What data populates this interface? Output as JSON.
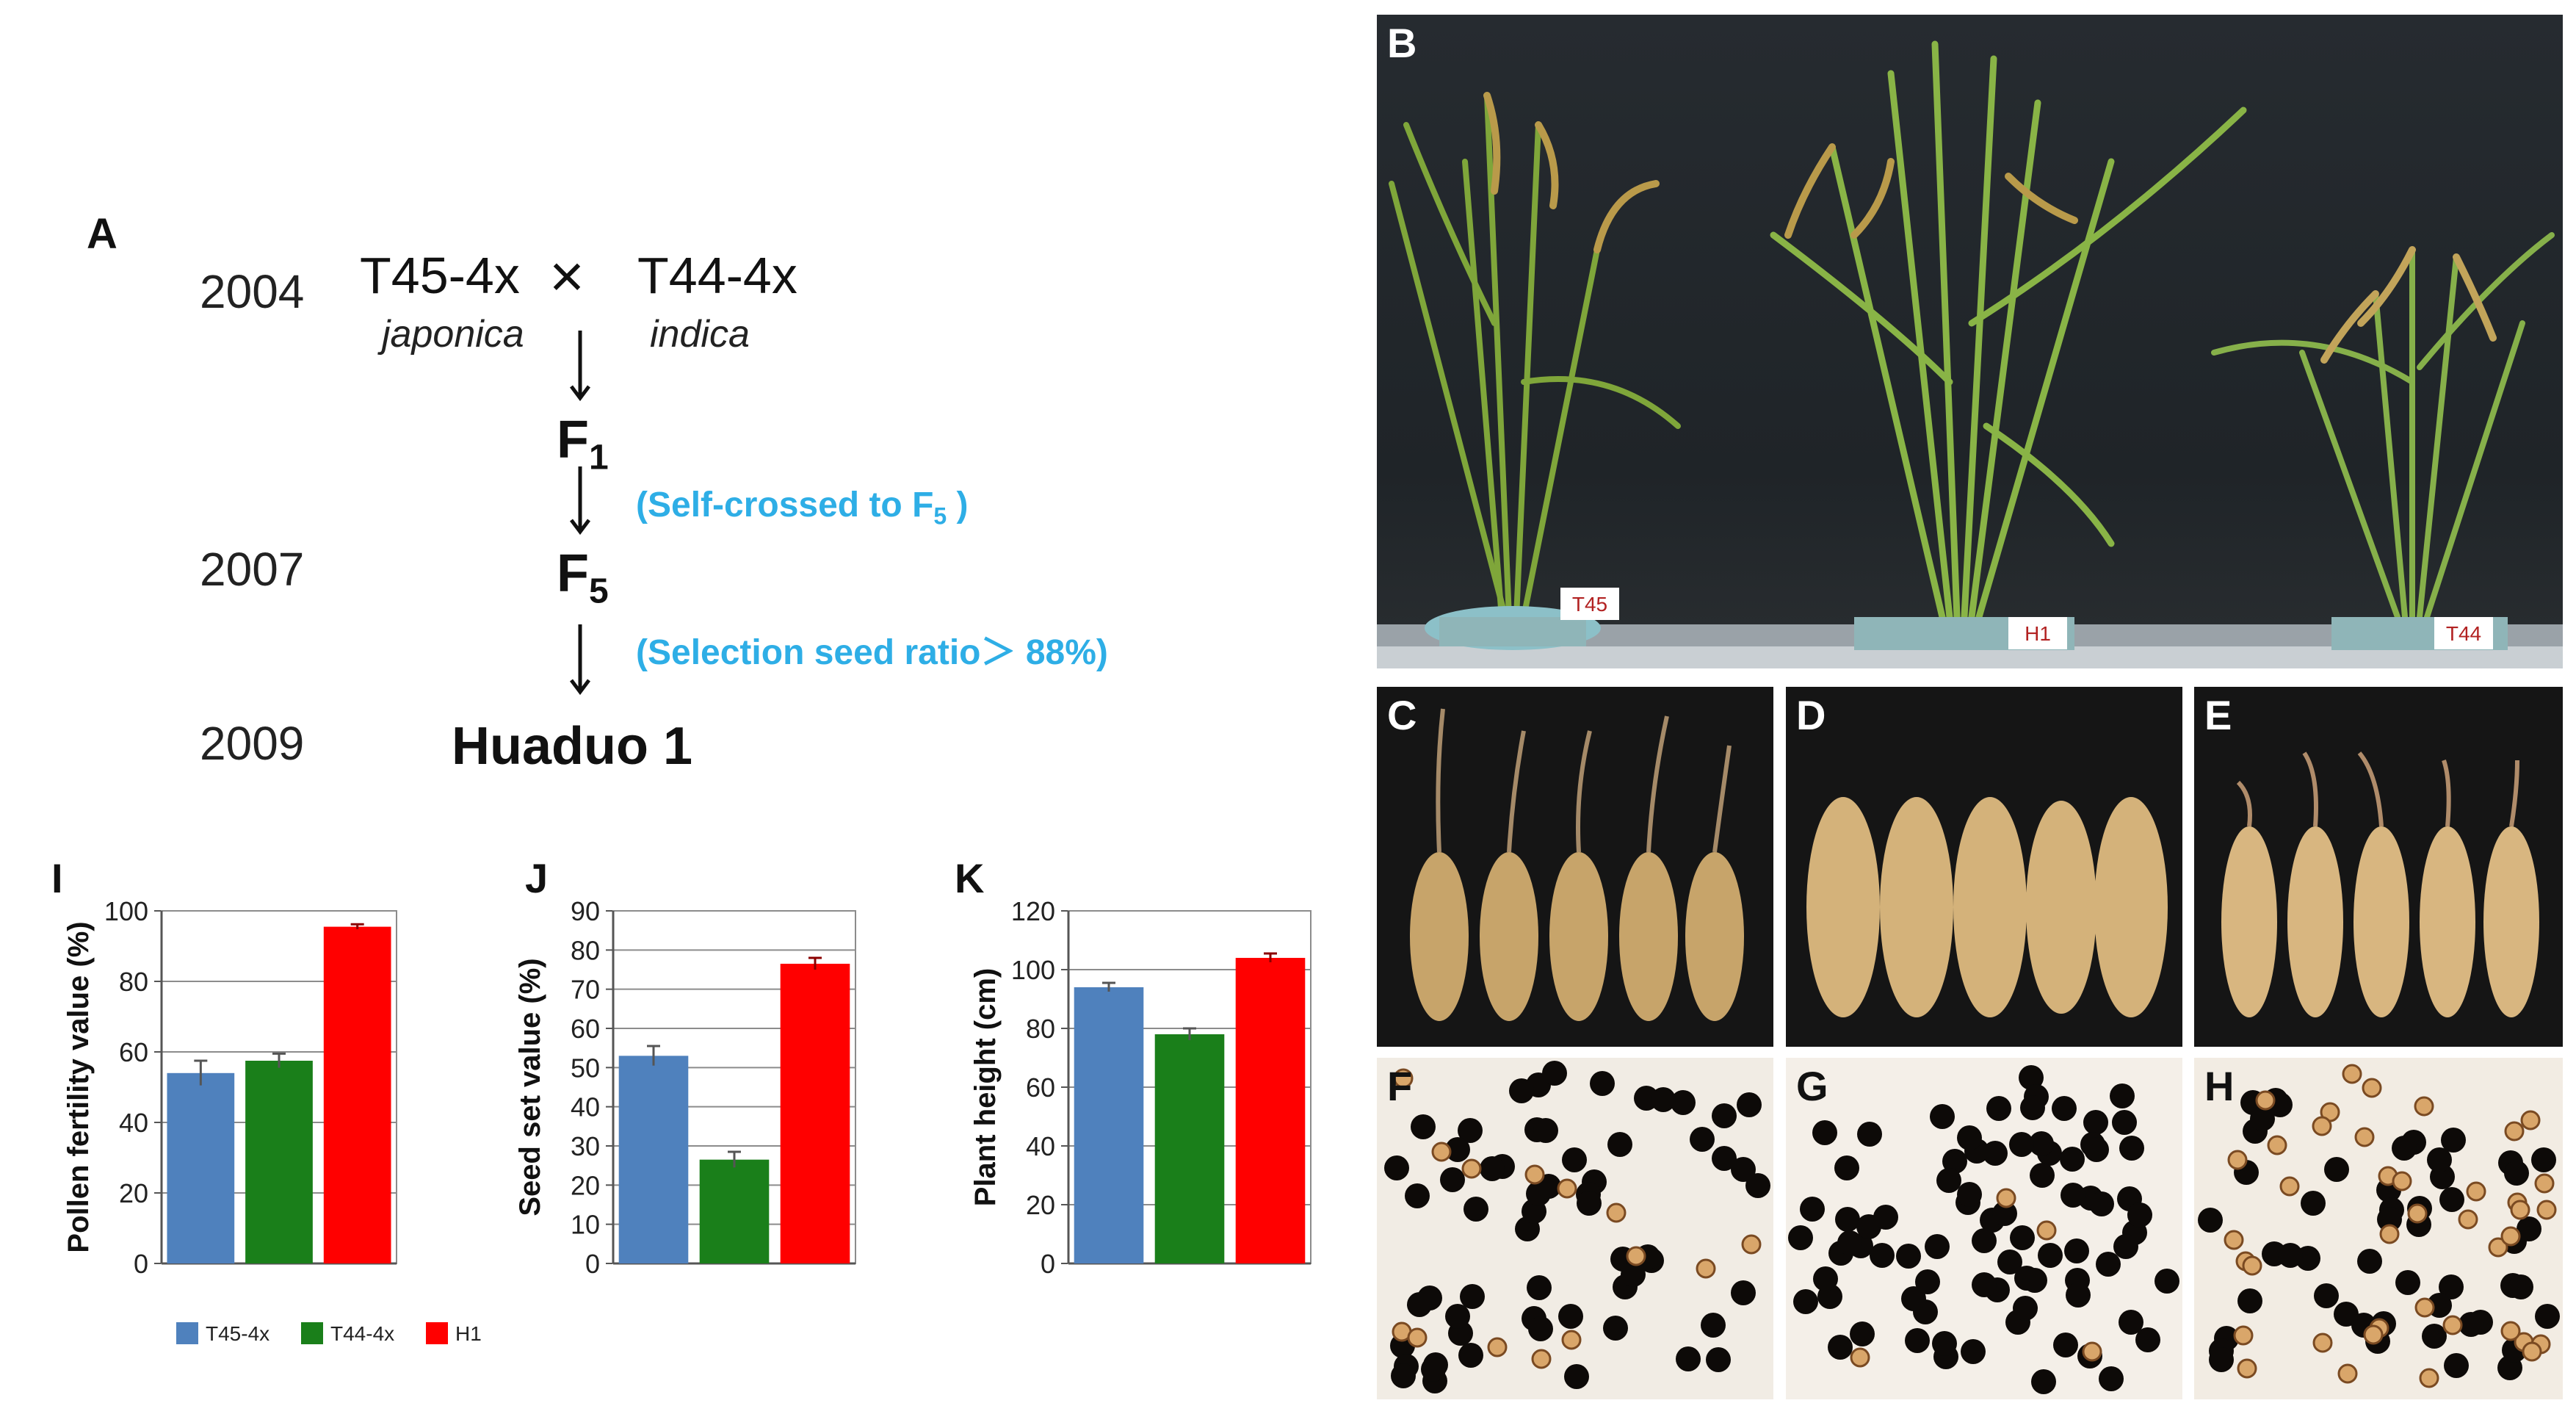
{
  "panel_a": {
    "letter": "A",
    "years": [
      "2004",
      "2007",
      "2009"
    ],
    "parent_female": "T45-4x",
    "cross_symbol": "×",
    "parent_male": "T44-4x",
    "female_subspecies": "japonica",
    "male_subspecies": "indica",
    "f1": {
      "base": "F",
      "sub": "1"
    },
    "f5": {
      "base": "F",
      "sub": "5"
    },
    "note_self_crossed": {
      "pre": "(Self-crossed to F",
      "sub": "5",
      "post": " )"
    },
    "note_selection": "(Selection seed ratio＞ 88%)",
    "variety": "Huaduo 1"
  },
  "photos": {
    "B": {
      "letter": "B",
      "pot_labels": [
        "T45",
        "H1",
        "T44"
      ]
    },
    "C": {
      "letter": "C"
    },
    "D": {
      "letter": "D"
    },
    "E": {
      "letter": "E"
    },
    "F": {
      "letter": "F"
    },
    "G": {
      "letter": "G"
    },
    "H": {
      "letter": "H"
    }
  },
  "colors": {
    "T45-4x": "#4f81bd",
    "T44-4x": "#1a7f1a",
    "H1": "#ff0000",
    "note": "#2eaee6"
  },
  "legend": [
    {
      "name": "T45-4x",
      "color": "#4f81bd"
    },
    {
      "name": "T44-4x",
      "color": "#1a7f1a"
    },
    {
      "name": "H1",
      "color": "#ff0000"
    }
  ],
  "chart_data": [
    {
      "panel": "I",
      "type": "bar",
      "ylabel": "Pollen fertility value (%)",
      "ylim": [
        0,
        100
      ],
      "yticks": [
        0,
        20,
        40,
        60,
        80,
        100
      ],
      "series": [
        {
          "name": "T45-4x",
          "values": [
            54
          ],
          "error": [
            3.5
          ]
        },
        {
          "name": "T44-4x",
          "values": [
            57.5
          ],
          "error": [
            2
          ]
        },
        {
          "name": "H1",
          "values": [
            95.5
          ],
          "error": [
            0.7
          ]
        }
      ]
    },
    {
      "panel": "J",
      "type": "bar",
      "ylabel": "Seed set value (%)",
      "ylim": [
        0,
        90
      ],
      "yticks": [
        0,
        10,
        20,
        30,
        40,
        50,
        60,
        70,
        80,
        90
      ],
      "series": [
        {
          "name": "T45-4x",
          "values": [
            53
          ],
          "error": [
            2.5
          ]
        },
        {
          "name": "T44-4x",
          "values": [
            26.5
          ],
          "error": [
            2
          ]
        },
        {
          "name": "H1",
          "values": [
            76.5
          ],
          "error": [
            1.5
          ]
        }
      ]
    },
    {
      "panel": "K",
      "type": "bar",
      "ylabel": "Plant height (cm)",
      "ylim": [
        0,
        120
      ],
      "yticks": [
        0,
        20,
        40,
        60,
        80,
        100,
        120
      ],
      "series": [
        {
          "name": "T45-4x",
          "values": [
            94
          ],
          "error": [
            1.5
          ]
        },
        {
          "name": "T44-4x",
          "values": [
            78
          ],
          "error": [
            2
          ]
        },
        {
          "name": "H1",
          "values": [
            104
          ],
          "error": [
            1.5
          ]
        }
      ]
    }
  ]
}
